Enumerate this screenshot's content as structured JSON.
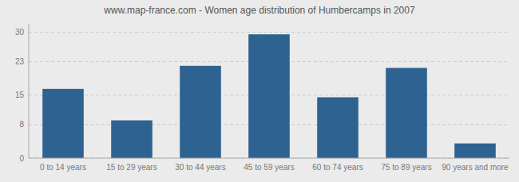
{
  "chart_data": {
    "type": "bar",
    "title": "www.map-france.com - Women age distribution of Humbercamps in 2007",
    "categories": [
      "0 to 14 years",
      "15 to 29 years",
      "30 to 44 years",
      "45 to 59 years",
      "60 to 74 years",
      "75 to 89 years",
      "90 years and more"
    ],
    "values": [
      16.5,
      9.0,
      22.0,
      29.5,
      14.5,
      21.5,
      3.5
    ],
    "color": "#2e6391",
    "ylim": [
      0,
      32
    ],
    "yticks": [
      0,
      8,
      15,
      23,
      30
    ],
    "grid": true
  }
}
